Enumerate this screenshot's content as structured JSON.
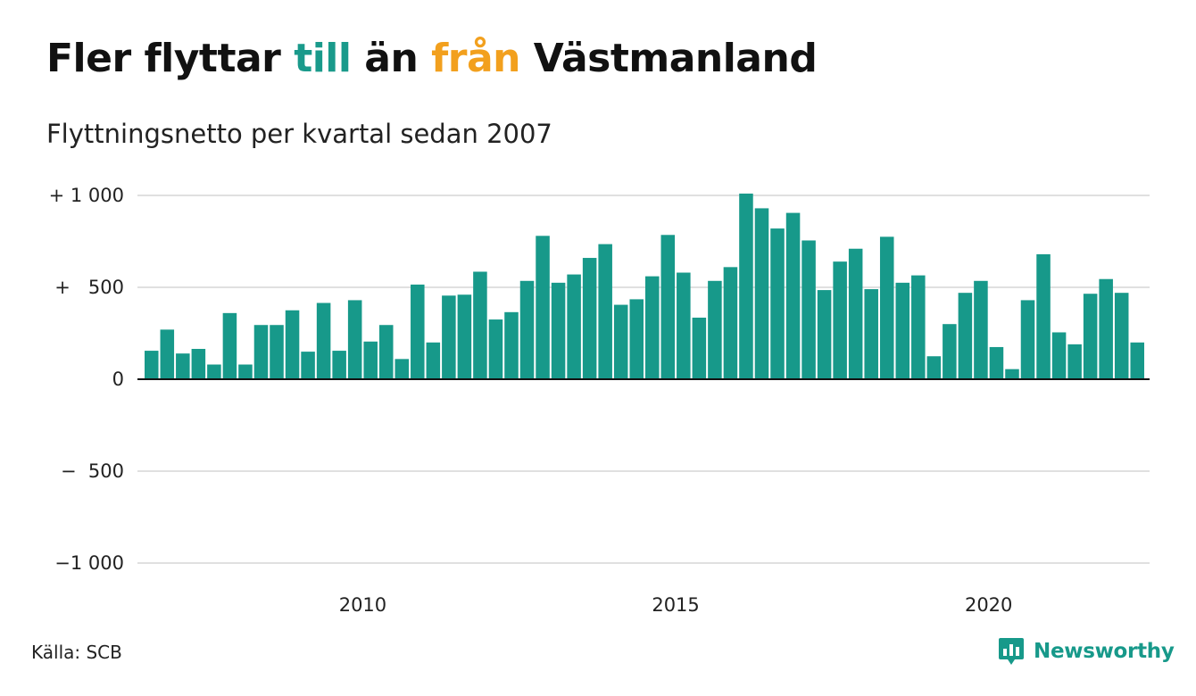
{
  "title": {
    "part1": "Fler flyttar ",
    "highlight1": "till",
    "part2": " än ",
    "highlight2": "från",
    "part3": " Västmanland",
    "color_till": "#1a9a8b",
    "color_fran": "#f2a01e"
  },
  "subtitle": "Flyttningsnetto per kvartal sedan 2007",
  "source": "Källa: SCB",
  "brand": {
    "name": "Newsworthy",
    "icon": "newsworthy-logo-icon",
    "color": "#17998a"
  },
  "chart_data": {
    "type": "bar",
    "bar_color": "#17998a",
    "grid": true,
    "ylim": [
      -1000,
      1000
    ],
    "y_ticks": [
      1000,
      500,
      0,
      -500,
      -1000
    ],
    "y_tick_labels": [
      "+ 1 000",
      "+   500",
      "0",
      "−  500",
      "−1 000"
    ],
    "x_ticks": [
      2010,
      2015,
      2020
    ],
    "x_tick_labels": [
      "2010",
      "2015",
      "2020"
    ],
    "x_start_year": 2007,
    "categories": [
      "2007 K1",
      "2007 K2",
      "2007 K3",
      "2007 K4",
      "2008 K1",
      "2008 K2",
      "2008 K3",
      "2008 K4",
      "2009 K1",
      "2009 K2",
      "2009 K3",
      "2009 K4",
      "2010 K1",
      "2010 K2",
      "2010 K3",
      "2010 K4",
      "2011 K1",
      "2011 K2",
      "2011 K3",
      "2011 K4",
      "2012 K1",
      "2012 K2",
      "2012 K3",
      "2012 K4",
      "2013 K1",
      "2013 K2",
      "2013 K3",
      "2013 K4",
      "2014 K1",
      "2014 K2",
      "2014 K3",
      "2014 K4",
      "2015 K1",
      "2015 K2",
      "2015 K3",
      "2015 K4",
      "2016 K1",
      "2016 K2",
      "2016 K3",
      "2016 K4",
      "2017 K1",
      "2017 K2",
      "2017 K3",
      "2017 K4",
      "2018 K1",
      "2018 K2",
      "2018 K3",
      "2018 K4",
      "2019 K1",
      "2019 K2",
      "2019 K3",
      "2019 K4",
      "2020 K1",
      "2020 K2",
      "2020 K3",
      "2020 K4",
      "2021 K1",
      "2021 K2",
      "2021 K3",
      "2021 K4",
      "2022 K1",
      "2022 K2",
      "2022 K3",
      "2022 K4"
    ],
    "values": [
      155,
      270,
      140,
      165,
      80,
      360,
      80,
      295,
      295,
      375,
      150,
      415,
      155,
      430,
      205,
      295,
      110,
      515,
      200,
      455,
      460,
      585,
      325,
      365,
      535,
      780,
      525,
      570,
      660,
      735,
      405,
      435,
      560,
      785,
      580,
      335,
      535,
      610,
      1010,
      930,
      820,
      905,
      755,
      485,
      640,
      710,
      490,
      775,
      525,
      565,
      125,
      300,
      470,
      535,
      175,
      55,
      430,
      680,
      255,
      190,
      465,
      545,
      470,
      200
    ]
  }
}
